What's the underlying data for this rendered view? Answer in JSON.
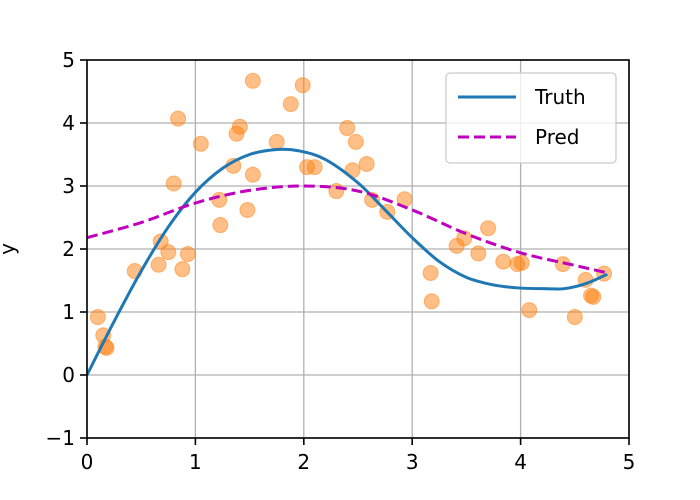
{
  "chart_data": {
    "type": "scatter",
    "title": "",
    "xlabel": "",
    "ylabel": "y",
    "xlim": [
      0,
      5
    ],
    "ylim": [
      -1,
      5
    ],
    "xticks": [
      "0",
      "1",
      "2",
      "3",
      "4",
      "5"
    ],
    "yticks": [
      "−1",
      "0",
      "1",
      "2",
      "3",
      "4",
      "5"
    ],
    "grid": true,
    "legend": {
      "placement": "top-right",
      "entries": [
        {
          "label": "Truth",
          "style": "solid",
          "color": "#1f77b4"
        },
        {
          "label": "Pred",
          "style": "dashed",
          "color": "#bf00bf"
        }
      ]
    },
    "scatter_color": "#ff7f0e",
    "series": [
      {
        "name": "Truth",
        "kind": "line",
        "color": "#1f77b4",
        "x": [
          0,
          0.25,
          0.5,
          0.75,
          1.0,
          1.25,
          1.5,
          1.75,
          1.95,
          2.2,
          2.5,
          2.75,
          3.0,
          3.25,
          3.5,
          3.75,
          4.0,
          4.25,
          4.4,
          4.6,
          4.8
        ],
        "y": [
          0.0,
          0.85,
          1.65,
          2.35,
          2.9,
          3.28,
          3.5,
          3.58,
          3.56,
          3.42,
          3.05,
          2.62,
          2.18,
          1.8,
          1.55,
          1.43,
          1.38,
          1.37,
          1.37,
          1.45,
          1.6
        ]
      },
      {
        "name": "Pred",
        "kind": "dashed-line",
        "color": "#bf00bf",
        "x": [
          0,
          0.5,
          1.0,
          1.5,
          2.0,
          2.5,
          3.0,
          3.5,
          4.0,
          4.5,
          4.8
        ],
        "y": [
          2.18,
          2.42,
          2.73,
          2.93,
          3.0,
          2.92,
          2.62,
          2.24,
          1.94,
          1.74,
          1.62
        ]
      },
      {
        "kind": "scatter",
        "color": "#ff7f0e",
        "points": [
          [
            0.1,
            0.92
          ],
          [
            0.15,
            0.63
          ],
          [
            0.17,
            0.45
          ],
          [
            0.18,
            0.43
          ],
          [
            0.44,
            1.65
          ],
          [
            0.66,
            1.75
          ],
          [
            0.68,
            2.12
          ],
          [
            0.75,
            1.95
          ],
          [
            0.8,
            3.04
          ],
          [
            0.84,
            4.07
          ],
          [
            0.88,
            1.68
          ],
          [
            0.93,
            1.92
          ],
          [
            1.05,
            3.67
          ],
          [
            1.22,
            2.78
          ],
          [
            1.23,
            2.38
          ],
          [
            1.35,
            3.32
          ],
          [
            1.38,
            3.83
          ],
          [
            1.41,
            3.94
          ],
          [
            1.48,
            2.62
          ],
          [
            1.53,
            3.18
          ],
          [
            1.53,
            4.67
          ],
          [
            1.75,
            3.7
          ],
          [
            1.88,
            4.3
          ],
          [
            1.99,
            4.6
          ],
          [
            2.03,
            3.3
          ],
          [
            2.1,
            3.3
          ],
          [
            2.3,
            2.92
          ],
          [
            2.4,
            3.92
          ],
          [
            2.45,
            3.25
          ],
          [
            2.48,
            3.7
          ],
          [
            2.58,
            3.35
          ],
          [
            2.63,
            2.78
          ],
          [
            2.77,
            2.59
          ],
          [
            2.93,
            2.79
          ],
          [
            3.17,
            1.62
          ],
          [
            3.18,
            1.17
          ],
          [
            3.41,
            2.05
          ],
          [
            3.48,
            2.17
          ],
          [
            3.61,
            1.93
          ],
          [
            3.7,
            2.33
          ],
          [
            3.84,
            1.8
          ],
          [
            3.97,
            1.76
          ],
          [
            4.01,
            1.78
          ],
          [
            4.08,
            1.03
          ],
          [
            4.39,
            1.76
          ],
          [
            4.5,
            0.92
          ],
          [
            4.6,
            1.51
          ],
          [
            4.65,
            1.26
          ],
          [
            4.67,
            1.24
          ],
          [
            4.77,
            1.61
          ]
        ]
      }
    ]
  }
}
